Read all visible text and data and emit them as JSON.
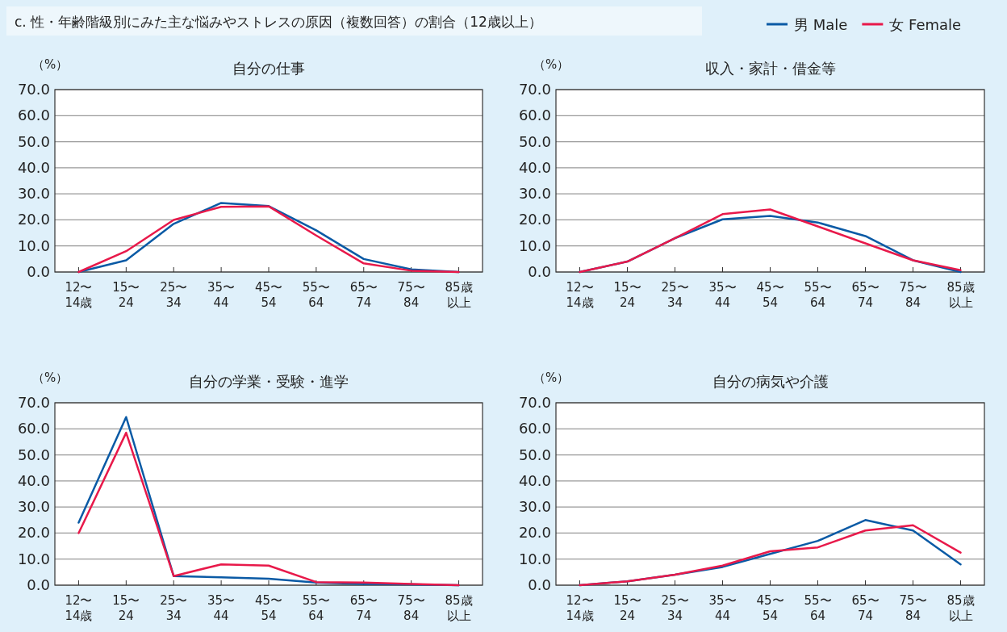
{
  "chart_data": [
    {
      "type": "line",
      "title": "自分の仕事",
      "ylabel": "（%）",
      "subtitle": "c.  性・年齢階級別にみた主な悩みやストレスの原因（複数回答）の割合（12歳以上）",
      "categories": [
        "12〜14歳",
        "15〜24",
        "25〜34",
        "35〜44",
        "45〜54",
        "55〜64",
        "65〜74",
        "75〜84",
        "85歳以上"
      ],
      "ylim": [
        0,
        70
      ],
      "yticks": [
        {
          "value": 0,
          "label": "0.0"
        },
        {
          "value": 10,
          "label": "10.0"
        },
        {
          "value": 20,
          "label": "20.0"
        },
        {
          "value": 30,
          "label": "30.0"
        },
        {
          "value": 40,
          "label": "40.0"
        },
        {
          "value": 50,
          "label": "50.0"
        },
        {
          "value": 60,
          "label": "60.0"
        },
        {
          "value": 70,
          "label": "70.0"
        }
      ],
      "grid": "y",
      "series": [
        {
          "color": "#0a5aa5",
          "values": [
            0,
            4.5,
            18.5,
            26.5,
            25.3,
            16,
            5,
            1,
            0
          ]
        },
        {
          "color": "#e8194a",
          "values": [
            0,
            8,
            20,
            25,
            25.2,
            14,
            3.3,
            0.5,
            0
          ]
        }
      ]
    },
    {
      "type": "line",
      "title": "収入・家計・借金等",
      "ylabel": "（%）",
      "legend": "top right",
      "categories": [
        "12〜14歳",
        "15〜24",
        "25〜34",
        "35〜44",
        "45〜54",
        "55〜64",
        "65〜74",
        "75〜84",
        "85歳以上"
      ],
      "ylim": [
        0,
        70
      ],
      "yticks": [
        {
          "value": 0,
          "label": "0.0"
        },
        {
          "value": 10,
          "label": "10.0"
        },
        {
          "value": 20,
          "label": "20.0"
        },
        {
          "value": 30,
          "label": "30.0"
        },
        {
          "value": 40,
          "label": "40.0"
        },
        {
          "value": 50,
          "label": "50.0"
        },
        {
          "value": 60,
          "label": "60.0"
        },
        {
          "value": 70,
          "label": "70.0"
        }
      ],
      "grid": "y",
      "series": [
        {
          "name": "男 Male",
          "color": "#0a5aa5",
          "values": [
            0,
            4,
            13,
            20.2,
            21.5,
            19,
            13.8,
            4.5,
            0
          ]
        },
        {
          "name": "女 Female",
          "color": "#e8194a",
          "values": [
            0,
            4,
            13,
            22.2,
            24,
            17.5,
            11,
            4.5,
            0.7
          ]
        }
      ]
    },
    {
      "type": "line",
      "title": "自分の学業・受験・進学",
      "ylabel": "（%）",
      "categories": [
        "12〜14歳",
        "15〜24",
        "25〜34",
        "35〜44",
        "45〜54",
        "55〜64",
        "65〜74",
        "75〜84",
        "85歳以上"
      ],
      "ylim": [
        0,
        70
      ],
      "yticks": [
        {
          "value": 0,
          "label": "0.0"
        },
        {
          "value": 10,
          "label": "10.0"
        },
        {
          "value": 20,
          "label": "20.0"
        },
        {
          "value": 30,
          "label": "30.0"
        },
        {
          "value": 40,
          "label": "40.0"
        },
        {
          "value": 50,
          "label": "50.0"
        },
        {
          "value": 60,
          "label": "60.0"
        },
        {
          "value": 70,
          "label": "70.0"
        }
      ],
      "grid": "y",
      "series": [
        {
          "color": "#0a5aa5",
          "values": [
            24,
            64.5,
            3.5,
            3,
            2.5,
            1,
            0.5,
            0.3,
            0
          ]
        },
        {
          "color": "#e8194a",
          "values": [
            20,
            58.5,
            3.5,
            8,
            7.5,
            1.2,
            1,
            0.5,
            0
          ]
        }
      ]
    },
    {
      "type": "line",
      "title": "自分の病気や介護",
      "ylabel": "（%）",
      "categories": [
        "12〜14歳",
        "15〜24",
        "25〜34",
        "35〜44",
        "45〜54",
        "55〜64",
        "65〜74",
        "75〜84",
        "85歳以上"
      ],
      "ylim": [
        0,
        70
      ],
      "yticks": [
        {
          "value": 0,
          "label": "0.0"
        },
        {
          "value": 10,
          "label": "10.0"
        },
        {
          "value": 20,
          "label": "20.0"
        },
        {
          "value": 30,
          "label": "30.0"
        },
        {
          "value": 40,
          "label": "40.0"
        },
        {
          "value": 50,
          "label": "50.0"
        },
        {
          "value": 60,
          "label": "60.0"
        },
        {
          "value": 70,
          "label": "70.0"
        }
      ],
      "grid": "y",
      "series": [
        {
          "color": "#0a5aa5",
          "values": [
            0,
            1.5,
            4,
            7,
            12,
            17,
            25,
            21,
            8
          ]
        },
        {
          "color": "#e8194a",
          "values": [
            0,
            1.5,
            4,
            7.5,
            13,
            14.5,
            21,
            23,
            12.5
          ]
        }
      ]
    }
  ]
}
